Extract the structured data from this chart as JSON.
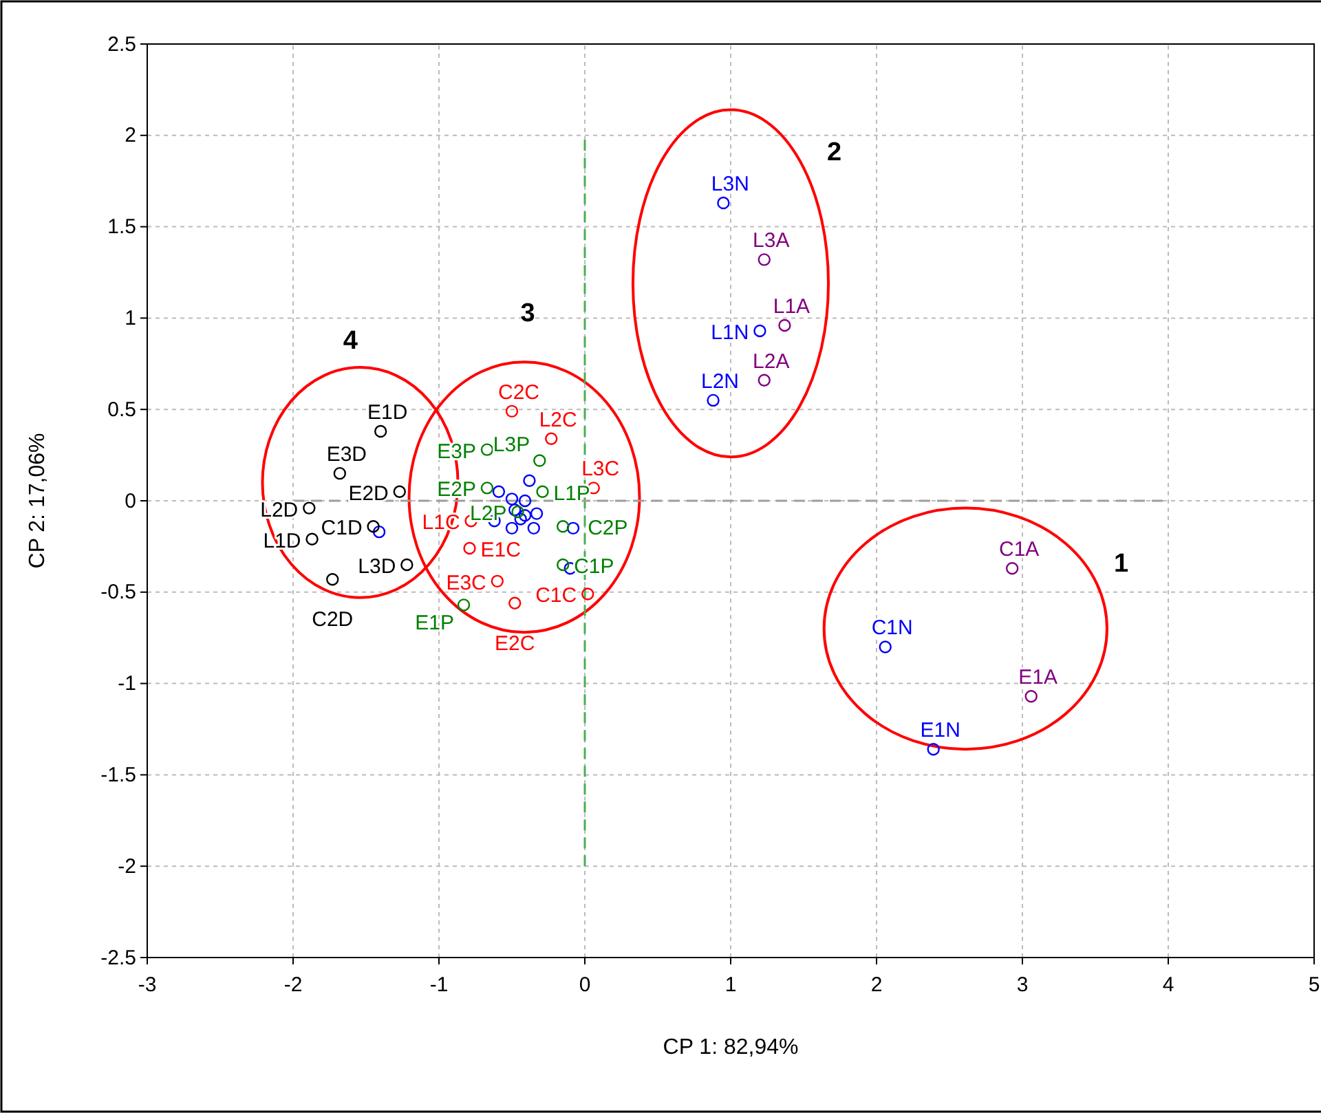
{
  "chart_data": {
    "type": "scatter",
    "xlabel": "CP 1: 82,94%",
    "ylabel": "CP 2: 17,06%",
    "xlim": [
      -3,
      5
    ],
    "xticks": [
      -3,
      -2,
      -1,
      0,
      1,
      2,
      3,
      4,
      5
    ],
    "ylim": [
      -2.5,
      2.5
    ],
    "yticks": [
      -2.5,
      -2,
      -1.5,
      -1,
      -0.5,
      0,
      0.5,
      1,
      1.5,
      2,
      2.5
    ],
    "grid": true,
    "marker": "circle",
    "annotations": [
      "1",
      "2",
      "3",
      "4"
    ],
    "series": [
      {
        "type": "line",
        "color": "#4caf50",
        "line_style": "dashed",
        "marker": "none",
        "x": [
          0,
          0
        ],
        "values": [
          -2,
          2
        ]
      },
      {
        "type": "line",
        "color": "#9e9e9e",
        "line_style": "dashed",
        "marker": "none",
        "x": [
          -2,
          4
        ],
        "values": [
          0,
          0
        ]
      },
      {
        "color": "#0000ff",
        "x": [
          -0.38,
          -0.59,
          -0.5,
          -0.41,
          -0.48,
          -0.33,
          -0.41,
          -0.62,
          -0.44,
          -0.5,
          -0.35,
          -0.08,
          -0.1,
          -1.41
        ],
        "values": [
          0.11,
          0.05,
          0.01,
          0.0,
          -0.05,
          -0.07,
          -0.08,
          -0.11,
          -0.1,
          -0.15,
          -0.15,
          -0.15,
          -0.37,
          -0.17
        ]
      },
      {
        "name": "L3N",
        "color": "#0000ff",
        "x": [
          0.95
        ],
        "values": [
          1.63
        ]
      },
      {
        "name": "L1A",
        "color": "#800080",
        "x": [
          1.37
        ],
        "values": [
          0.96
        ]
      },
      {
        "name": "L1N",
        "color": "#0000ff",
        "x": [
          1.2
        ],
        "values": [
          0.93
        ]
      },
      {
        "name": "L2N",
        "color": "#0000ff",
        "x": [
          0.88
        ],
        "values": [
          0.55
        ]
      },
      {
        "name": "C1N",
        "color": "#0000ff",
        "x": [
          2.06
        ],
        "values": [
          -0.8
        ]
      },
      {
        "name": "E1N",
        "color": "#0000ff",
        "x": [
          2.39
        ],
        "values": [
          -1.36
        ]
      },
      {
        "name": "L3A",
        "color": "#800080",
        "x": [
          1.23
        ],
        "values": [
          1.32
        ]
      },
      {
        "name": "L2A",
        "color": "#800080",
        "x": [
          1.23
        ],
        "values": [
          0.66
        ]
      },
      {
        "name": "C1A",
        "color": "#800080",
        "x": [
          2.93
        ],
        "values": [
          -0.37
        ]
      },
      {
        "name": "E1A",
        "color": "#800080",
        "x": [
          3.06
        ],
        "values": [
          -1.07
        ]
      },
      {
        "name": "C2C",
        "color": "#ff0000",
        "x": [
          -0.5
        ],
        "values": [
          0.49
        ]
      },
      {
        "name": "L2C",
        "color": "#ff0000",
        "x": [
          -0.23
        ],
        "values": [
          0.34
        ]
      },
      {
        "name": "L3C",
        "color": "#ff0000",
        "x": [
          0.06
        ],
        "values": [
          0.07
        ]
      },
      {
        "name": "L1C",
        "color": "#ff0000",
        "x": [
          -0.78
        ],
        "values": [
          -0.11
        ]
      },
      {
        "name": "E1C",
        "color": "#ff0000",
        "x": [
          -0.79
        ],
        "values": [
          -0.26
        ]
      },
      {
        "name": "E3C",
        "color": "#ff0000",
        "x": [
          -0.6
        ],
        "values": [
          -0.44
        ]
      },
      {
        "name": "C1C",
        "color": "#ff0000",
        "x": [
          0.02
        ],
        "values": [
          -0.51
        ]
      },
      {
        "name": "E2C",
        "color": "#ff0000",
        "x": [
          -0.48
        ],
        "values": [
          -0.56
        ]
      },
      {
        "name": "E3P",
        "color": "#008000",
        "x": [
          -0.67
        ],
        "values": [
          0.28
        ]
      },
      {
        "name": "L3P",
        "color": "#008000",
        "x": [
          -0.31
        ],
        "values": [
          0.22
        ]
      },
      {
        "name": "E2P",
        "color": "#008000",
        "x": [
          -0.67
        ],
        "values": [
          0.07
        ]
      },
      {
        "name": "L1P",
        "color": "#008000",
        "x": [
          -0.29
        ],
        "values": [
          0.05
        ]
      },
      {
        "name": "L2P",
        "color": "#008000",
        "x": [
          -0.46
        ],
        "values": [
          -0.06
        ]
      },
      {
        "name": "C2P",
        "color": "#008000",
        "x": [
          -0.15
        ],
        "values": [
          -0.14
        ]
      },
      {
        "name": "C1P",
        "color": "#008000",
        "x": [
          -0.15
        ],
        "values": [
          -0.35
        ]
      },
      {
        "name": "E1P",
        "color": "#008000",
        "x": [
          -0.83
        ],
        "values": [
          -0.57
        ]
      },
      {
        "name": "E1D",
        "color": "#000000",
        "x": [
          -1.4
        ],
        "values": [
          0.38
        ]
      },
      {
        "name": "E3D",
        "color": "#000000",
        "x": [
          -1.68
        ],
        "values": [
          0.15
        ]
      },
      {
        "name": "E2D",
        "color": "#000000",
        "x": [
          -1.27
        ],
        "values": [
          0.05
        ]
      },
      {
        "name": "L2D",
        "color": "#000000",
        "x": [
          -1.89
        ],
        "values": [
          -0.04
        ]
      },
      {
        "name": "C1D",
        "color": "#000000",
        "x": [
          -1.45
        ],
        "values": [
          -0.14
        ]
      },
      {
        "name": "L1D",
        "color": "#000000",
        "x": [
          -1.87
        ],
        "values": [
          -0.21
        ]
      },
      {
        "name": "L3D",
        "color": "#000000",
        "x": [
          -1.22
        ],
        "values": [
          -0.35
        ]
      },
      {
        "name": "C2D",
        "color": "#000000",
        "x": [
          -1.73
        ],
        "values": [
          -0.43
        ]
      }
    ]
  }
}
